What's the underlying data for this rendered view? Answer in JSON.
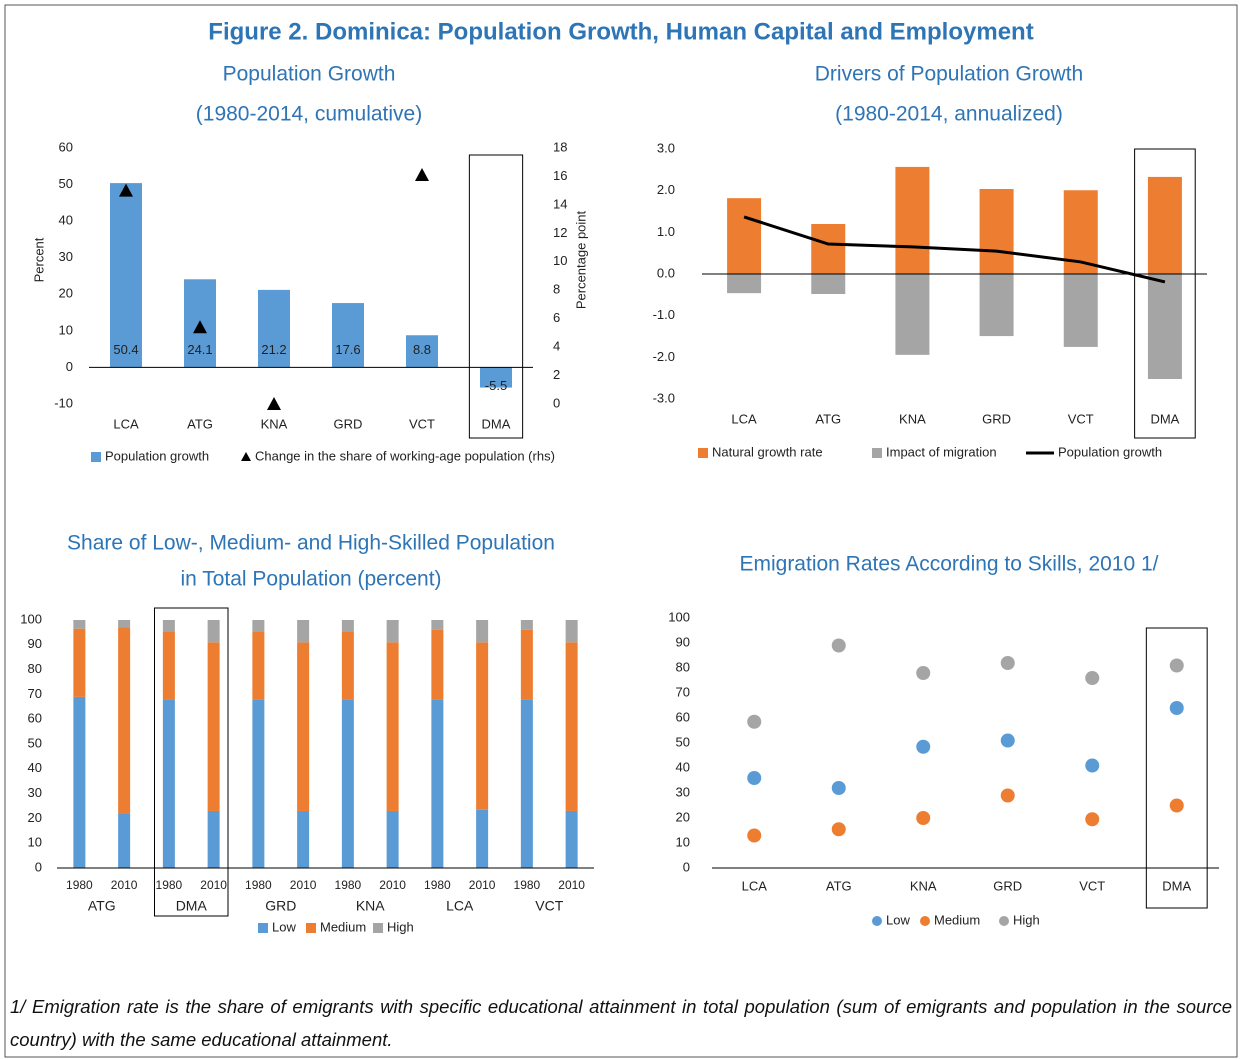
{
  "title": "Figure 2. Dominica: Population Growth, Human Capital and Employment",
  "footnote": "1/ Emigration rate is the share of emigrants with specific educational attainment in total population (sum of emigrants and population in the source country) with the same educational attainment.",
  "chart_data": [
    {
      "type": "bar",
      "title": "Population Growth",
      "subtitle": "(1980-2014, cumulative)",
      "categories": [
        "LCA",
        "ATG",
        "KNA",
        "GRD",
        "VCT",
        "DMA"
      ],
      "ylabel": "Percent",
      "y2label": "Percentage point",
      "ylim": [
        -10,
        60
      ],
      "yticks": [
        -10,
        0,
        10,
        20,
        30,
        40,
        50,
        60
      ],
      "y2lim": [
        0,
        18
      ],
      "y2ticks": [
        0,
        2,
        4,
        6,
        8,
        10,
        12,
        14,
        16,
        18
      ],
      "data_labels": true,
      "series": [
        {
          "name": "Population growth",
          "type": "bar",
          "color": "#5b9bd5",
          "values": [
            50.4,
            24.1,
            21.2,
            17.6,
            8.8,
            -5.5
          ]
        },
        {
          "name": "Change in the share of working-age population (rhs)",
          "type": "scatter",
          "marker": "triangle",
          "axis": "y2",
          "color": "#000000",
          "values": [
            15,
            5.4,
            0,
            null,
            16.1,
            null
          ]
        }
      ]
    },
    {
      "type": "bar",
      "stacked": true,
      "title": "Drivers of Population Growth",
      "subtitle": "(1980-2014, annualized)",
      "categories": [
        "LCA",
        "ATG",
        "KNA",
        "GRD",
        "VCT",
        "DMA"
      ],
      "ylim": [
        -3,
        3
      ],
      "yticks": [
        {
          "value": -3,
          "label": "-3.0"
        },
        {
          "value": -2,
          "label": "-2.0"
        },
        {
          "value": -1,
          "label": "-1.0"
        },
        {
          "value": 0,
          "label": "0.0"
        },
        {
          "value": 1,
          "label": "1.0"
        },
        {
          "value": 2,
          "label": "2.0"
        },
        {
          "value": 3,
          "label": "3.0"
        }
      ],
      "series": [
        {
          "name": "Natural growth rate",
          "type": "bar",
          "color": "#ed7d31",
          "values": [
            1.82,
            1.2,
            2.57,
            2.04,
            2.01,
            2.33
          ]
        },
        {
          "name": "Impact of migration",
          "type": "bar",
          "color": "#a5a5a5",
          "values": [
            -0.46,
            -0.48,
            -1.94,
            -1.49,
            -1.75,
            -2.52
          ]
        },
        {
          "name": "Population growth",
          "type": "line",
          "color": "#000000",
          "values": [
            1.37,
            0.72,
            0.65,
            0.55,
            0.29,
            -0.19
          ]
        }
      ]
    },
    {
      "type": "bar",
      "stacked": true,
      "title": [
        "Share of Low-, Medium- and High-Skilled Population",
        "in Total Population (percent)"
      ],
      "categories": [
        "1980",
        "2010",
        "1980",
        "2010",
        "1980",
        "2010",
        "1980",
        "2010",
        "1980",
        "2010",
        "1980",
        "2010"
      ],
      "groups": [
        "ATG",
        "DMA",
        "GRD",
        "KNA",
        "LCA",
        "VCT"
      ],
      "ylim": [
        0,
        100
      ],
      "yticks": [
        0,
        10,
        20,
        30,
        40,
        50,
        60,
        70,
        80,
        90,
        100
      ],
      "series": [
        {
          "name": "Low",
          "type": "bar",
          "color": "#5b9bd5",
          "values": [
            69,
            22,
            68,
            23,
            68,
            23,
            68,
            23,
            68,
            23.5,
            68,
            23
          ]
        },
        {
          "name": "Medium",
          "type": "bar",
          "color": "#ed7d31",
          "values": [
            27.5,
            75,
            27.5,
            68,
            27.5,
            68,
            27.5,
            68,
            28,
            67.5,
            28,
            68
          ]
        },
        {
          "name": "High",
          "type": "bar",
          "color": "#a5a5a5",
          "values": [
            3.5,
            3,
            4.5,
            9,
            4.5,
            9,
            4.5,
            9,
            4,
            9,
            4,
            9
          ]
        }
      ]
    },
    {
      "type": "scatter",
      "title": "Emigration Rates According to Skills, 2010 1/",
      "categories": [
        "LCA",
        "ATG",
        "KNA",
        "GRD",
        "VCT",
        "DMA"
      ],
      "ylim": [
        0,
        100
      ],
      "yticks": [
        0,
        10,
        20,
        30,
        40,
        50,
        60,
        70,
        80,
        90,
        100
      ],
      "series": [
        {
          "name": "Low",
          "type": "scatter",
          "marker": "circle",
          "color": "#5b9bd5",
          "values": [
            36,
            32,
            48.5,
            51,
            41,
            64
          ]
        },
        {
          "name": "Medium",
          "type": "scatter",
          "marker": "circle",
          "color": "#ed7d31",
          "values": [
            13,
            15.5,
            20,
            29,
            19.5,
            25
          ]
        },
        {
          "name": "High",
          "type": "scatter",
          "marker": "circle",
          "color": "#a5a5a5",
          "values": [
            58.5,
            89,
            78,
            82,
            76,
            81
          ]
        }
      ]
    }
  ]
}
